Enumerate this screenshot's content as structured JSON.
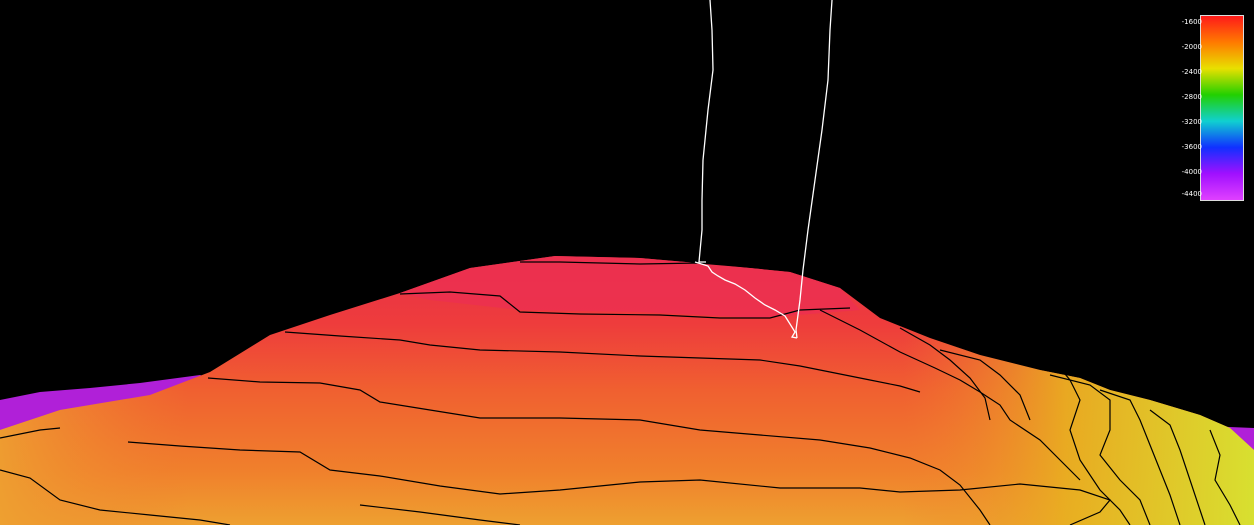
{
  "legend": {
    "labels": [
      "-1600",
      "-2000",
      "-2400",
      "-2800",
      "-3200",
      "-3600",
      "-4000",
      "-4400"
    ],
    "colors": [
      "#ff1a1a",
      "#ff7a00",
      "#e8e000",
      "#22d000",
      "#10d0d0",
      "#1030ff",
      "#a010ff",
      "#e040ff"
    ]
  },
  "scene": {
    "background": "#000000",
    "surface_colors": {
      "summit": "#e8304a",
      "upper": "#ee5030",
      "mid": "#f07a2a",
      "lower": "#eea030",
      "flank": "#e8c020",
      "far": "#d8e030",
      "base": "#b020d8"
    },
    "contour_color": "#000000",
    "track_color": "#ffffff"
  }
}
